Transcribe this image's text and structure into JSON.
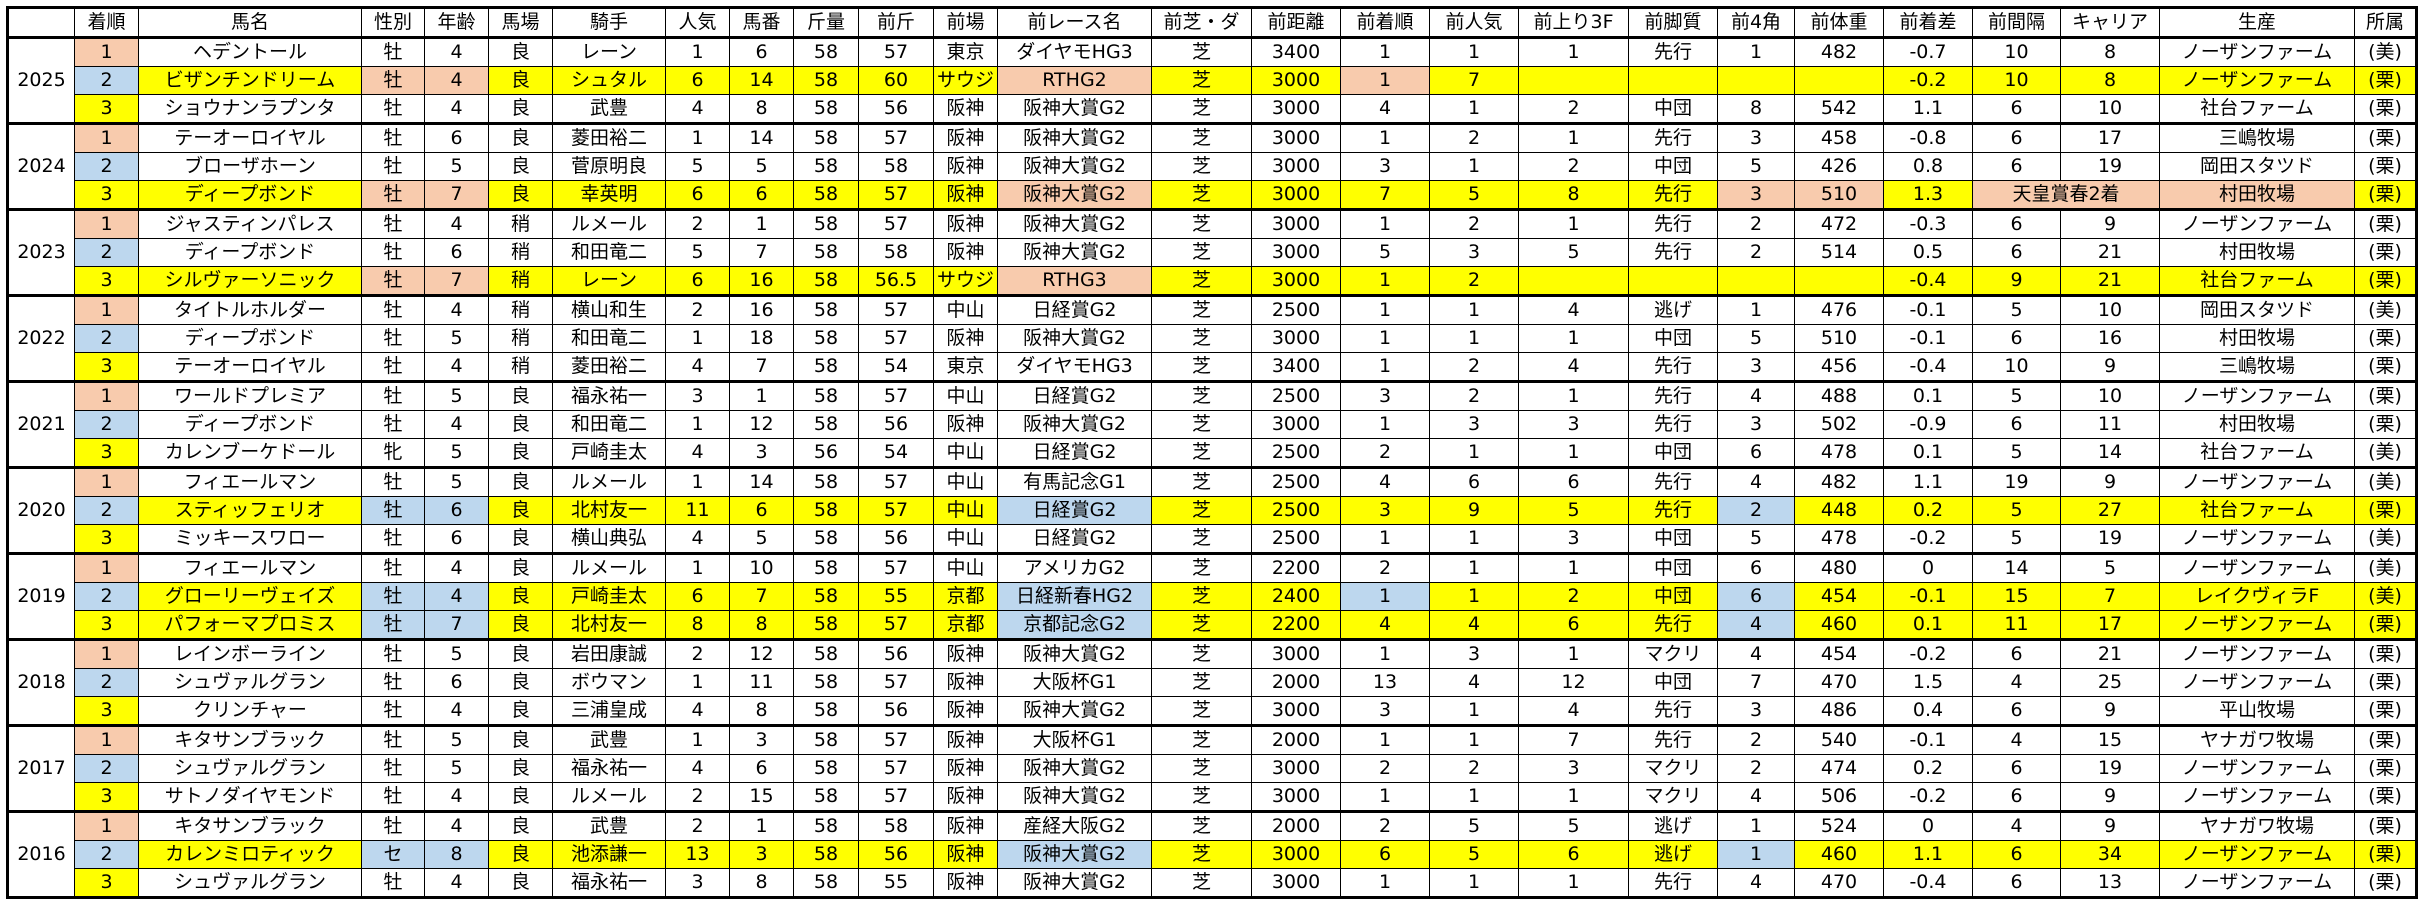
{
  "colors": {
    "yellow": "#FFFF00",
    "peach": "#F8CBAD",
    "blue": "#BDD7EE",
    "white": "#FFFFFF"
  },
  "rank_colors": {
    "1": "peach",
    "2": "blue",
    "3": "yellow"
  },
  "headers": [
    "",
    "着順",
    "馬名",
    "性別",
    "年齢",
    "馬場",
    "騎手",
    "人気",
    "馬番",
    "斤量",
    "前斤",
    "前場",
    "前レース名",
    "前芝・ダ",
    "前距離",
    "前着順",
    "前人気",
    "前上り3F",
    "前脚質",
    "前4角",
    "前体重",
    "前着差",
    "前間隔",
    "キャリア",
    "生産",
    "所属"
  ],
  "years": [
    {
      "year": "2025",
      "rows": [
        {
          "cells": [
            "1",
            "ヘデントール",
            "牡",
            "4",
            "良",
            "レーン",
            "1",
            "6",
            "58",
            "57",
            "東京",
            "ダイヤモHG3",
            "芝",
            "3400",
            "1",
            "1",
            "1",
            "先行",
            "1",
            "482",
            "-0.7",
            "10",
            "8",
            "ノーザンファーム",
            "(美)"
          ]
        },
        {
          "fill": "yellow",
          "cell_fill": {
            "2": "peach",
            "3": "peach",
            "11": "peach",
            "14": "peach"
          },
          "cells": [
            "2",
            "ビザンチンドリーム",
            "牡",
            "4",
            "良",
            "シュタル",
            "6",
            "14",
            "58",
            "60",
            "サウジ",
            "RTHG2",
            "芝",
            "3000",
            "1",
            "7",
            "",
            "",
            "",
            "",
            "-0.2",
            "10",
            "8",
            "ノーザンファーム",
            "(栗)"
          ]
        },
        {
          "cells": [
            "3",
            "ショウナンラプンタ",
            "牡",
            "4",
            "良",
            "武豊",
            "4",
            "8",
            "58",
            "56",
            "阪神",
            "阪神大賞G2",
            "芝",
            "3000",
            "4",
            "1",
            "2",
            "中団",
            "8",
            "542",
            "1.1",
            "6",
            "10",
            "社台ファーム",
            "(栗)"
          ]
        }
      ]
    },
    {
      "year": "2024",
      "rows": [
        {
          "cells": [
            "1",
            "テーオーロイヤル",
            "牡",
            "6",
            "良",
            "菱田裕二",
            "1",
            "14",
            "58",
            "57",
            "阪神",
            "阪神大賞G2",
            "芝",
            "3000",
            "1",
            "2",
            "1",
            "先行",
            "3",
            "458",
            "-0.8",
            "6",
            "17",
            "三嶋牧場",
            "(栗)"
          ]
        },
        {
          "cells": [
            "2",
            "ブローザホーン",
            "牡",
            "5",
            "良",
            "菅原明良",
            "5",
            "5",
            "58",
            "58",
            "阪神",
            "阪神大賞G2",
            "芝",
            "3000",
            "3",
            "1",
            "2",
            "中団",
            "5",
            "426",
            "0.8",
            "6",
            "19",
            "岡田スタツド",
            "(栗)"
          ]
        },
        {
          "fill": "yellow",
          "cell_fill": {
            "2": "peach",
            "3": "peach",
            "11": "peach",
            "18": "peach",
            "19": "peach",
            "21": "peach",
            "23": "peach"
          },
          "merge": {
            "21": 2
          },
          "cells": [
            "3",
            "ディープボンド",
            "牡",
            "7",
            "良",
            "幸英明",
            "6",
            "6",
            "58",
            "57",
            "阪神",
            "阪神大賞G2",
            "芝",
            "3000",
            "7",
            "5",
            "8",
            "先行",
            "3",
            "510",
            "1.3",
            "天皇賞春2着",
            null,
            "村田牧場",
            "(栗)"
          ]
        }
      ]
    },
    {
      "year": "2023",
      "rows": [
        {
          "cells": [
            "1",
            "ジャスティンパレス",
            "牡",
            "4",
            "稍",
            "ルメール",
            "2",
            "1",
            "58",
            "57",
            "阪神",
            "阪神大賞G2",
            "芝",
            "3000",
            "1",
            "2",
            "1",
            "先行",
            "2",
            "472",
            "-0.3",
            "6",
            "9",
            "ノーザンファーム",
            "(栗)"
          ]
        },
        {
          "cells": [
            "2",
            "ディープボンド",
            "牡",
            "6",
            "稍",
            "和田竜二",
            "5",
            "7",
            "58",
            "58",
            "阪神",
            "阪神大賞G2",
            "芝",
            "3000",
            "5",
            "3",
            "5",
            "先行",
            "2",
            "514",
            "0.5",
            "6",
            "21",
            "村田牧場",
            "(栗)"
          ]
        },
        {
          "fill": "yellow",
          "cell_fill": {
            "2": "peach",
            "3": "peach",
            "11": "peach"
          },
          "cells": [
            "3",
            "シルヴァーソニック",
            "牡",
            "7",
            "稍",
            "レーン",
            "6",
            "16",
            "58",
            "56.5",
            "サウジ",
            "RTHG3",
            "芝",
            "3000",
            "1",
            "2",
            "",
            "",
            "",
            "",
            "-0.4",
            "9",
            "21",
            "社台ファーム",
            "(栗)"
          ]
        }
      ]
    },
    {
      "year": "2022",
      "rows": [
        {
          "cells": [
            "1",
            "タイトルホルダー",
            "牡",
            "4",
            "稍",
            "横山和生",
            "2",
            "16",
            "58",
            "57",
            "中山",
            "日経賞G2",
            "芝",
            "2500",
            "1",
            "1",
            "4",
            "逃げ",
            "1",
            "476",
            "-0.1",
            "5",
            "10",
            "岡田スタツド",
            "(美)"
          ]
        },
        {
          "cells": [
            "2",
            "ディープボンド",
            "牡",
            "5",
            "稍",
            "和田竜二",
            "1",
            "18",
            "58",
            "57",
            "阪神",
            "阪神大賞G2",
            "芝",
            "3000",
            "1",
            "1",
            "1",
            "中団",
            "5",
            "510",
            "-0.1",
            "6",
            "16",
            "村田牧場",
            "(栗)"
          ]
        },
        {
          "cells": [
            "3",
            "テーオーロイヤル",
            "牡",
            "4",
            "稍",
            "菱田裕二",
            "4",
            "7",
            "58",
            "54",
            "東京",
            "ダイヤモHG3",
            "芝",
            "3400",
            "1",
            "2",
            "4",
            "先行",
            "3",
            "456",
            "-0.4",
            "10",
            "9",
            "三嶋牧場",
            "(栗)"
          ]
        }
      ]
    },
    {
      "year": "2021",
      "rows": [
        {
          "cells": [
            "1",
            "ワールドプレミア",
            "牡",
            "5",
            "良",
            "福永祐一",
            "3",
            "1",
            "58",
            "57",
            "中山",
            "日経賞G2",
            "芝",
            "2500",
            "3",
            "2",
            "1",
            "先行",
            "4",
            "488",
            "0.1",
            "5",
            "10",
            "ノーザンファーム",
            "(栗)"
          ]
        },
        {
          "cells": [
            "2",
            "ディープボンド",
            "牡",
            "4",
            "良",
            "和田竜二",
            "1",
            "12",
            "58",
            "56",
            "阪神",
            "阪神大賞G2",
            "芝",
            "3000",
            "1",
            "3",
            "3",
            "先行",
            "3",
            "502",
            "-0.9",
            "6",
            "11",
            "村田牧場",
            "(栗)"
          ]
        },
        {
          "cells": [
            "3",
            "カレンブーケドール",
            "牝",
            "5",
            "良",
            "戸崎圭太",
            "4",
            "3",
            "56",
            "54",
            "中山",
            "日経賞G2",
            "芝",
            "2500",
            "2",
            "1",
            "1",
            "中団",
            "6",
            "478",
            "0.1",
            "5",
            "14",
            "社台ファーム",
            "(美)"
          ]
        }
      ]
    },
    {
      "year": "2020",
      "rows": [
        {
          "cells": [
            "1",
            "フィエールマン",
            "牡",
            "5",
            "良",
            "ルメール",
            "1",
            "14",
            "58",
            "57",
            "中山",
            "有馬記念G1",
            "芝",
            "2500",
            "4",
            "6",
            "6",
            "先行",
            "4",
            "482",
            "1.1",
            "19",
            "9",
            "ノーザンファーム",
            "(美)"
          ]
        },
        {
          "fill": "yellow",
          "cell_fill": {
            "2": "blue",
            "3": "blue",
            "11": "blue",
            "18": "blue"
          },
          "cells": [
            "2",
            "スティッフェリオ",
            "牡",
            "6",
            "良",
            "北村友一",
            "11",
            "6",
            "58",
            "57",
            "中山",
            "日経賞G2",
            "芝",
            "2500",
            "3",
            "9",
            "5",
            "先行",
            "2",
            "448",
            "0.2",
            "5",
            "27",
            "社台ファーム",
            "(栗)"
          ]
        },
        {
          "cells": [
            "3",
            "ミッキースワロー",
            "牡",
            "6",
            "良",
            "横山典弘",
            "4",
            "5",
            "58",
            "56",
            "中山",
            "日経賞G2",
            "芝",
            "2500",
            "1",
            "1",
            "3",
            "中団",
            "5",
            "478",
            "-0.2",
            "5",
            "19",
            "ノーザンファーム",
            "(美)"
          ]
        }
      ]
    },
    {
      "year": "2019",
      "rows": [
        {
          "cells": [
            "1",
            "フィエールマン",
            "牡",
            "4",
            "良",
            "ルメール",
            "1",
            "10",
            "58",
            "57",
            "中山",
            "アメリカG2",
            "芝",
            "2200",
            "2",
            "1",
            "1",
            "中団",
            "6",
            "480",
            "0",
            "14",
            "5",
            "ノーザンファーム",
            "(美)"
          ]
        },
        {
          "fill": "yellow",
          "cell_fill": {
            "2": "blue",
            "3": "blue",
            "11": "blue",
            "14": "blue",
            "18": "blue"
          },
          "cells": [
            "2",
            "グローリーヴェイズ",
            "牡",
            "4",
            "良",
            "戸崎圭太",
            "6",
            "7",
            "58",
            "55",
            "京都",
            "日経新春HG2",
            "芝",
            "2400",
            "1",
            "1",
            "2",
            "中団",
            "6",
            "454",
            "-0.1",
            "15",
            "7",
            "レイクヴィラF",
            "(美)"
          ]
        },
        {
          "fill": "yellow",
          "cell_fill": {
            "2": "blue",
            "3": "blue",
            "11": "blue",
            "18": "blue"
          },
          "cells": [
            "3",
            "パフォーマプロミス",
            "牡",
            "7",
            "良",
            "北村友一",
            "8",
            "8",
            "58",
            "57",
            "京都",
            "京都記念G2",
            "芝",
            "2200",
            "4",
            "4",
            "6",
            "先行",
            "4",
            "460",
            "0.1",
            "11",
            "17",
            "ノーザンファーム",
            "(栗)"
          ]
        }
      ]
    },
    {
      "year": "2018",
      "rows": [
        {
          "cells": [
            "1",
            "レインボーライン",
            "牡",
            "5",
            "良",
            "岩田康誠",
            "2",
            "12",
            "58",
            "56",
            "阪神",
            "阪神大賞G2",
            "芝",
            "3000",
            "1",
            "3",
            "1",
            "マクリ",
            "4",
            "454",
            "-0.2",
            "6",
            "21",
            "ノーザンファーム",
            "(栗)"
          ]
        },
        {
          "cells": [
            "2",
            "シュヴァルグラン",
            "牡",
            "6",
            "良",
            "ボウマン",
            "1",
            "11",
            "58",
            "57",
            "阪神",
            "大阪杯G1",
            "芝",
            "2000",
            "13",
            "4",
            "12",
            "中団",
            "7",
            "470",
            "1.5",
            "4",
            "25",
            "ノーザンファーム",
            "(栗)"
          ]
        },
        {
          "cells": [
            "3",
            "クリンチャー",
            "牡",
            "4",
            "良",
            "三浦皇成",
            "4",
            "8",
            "58",
            "56",
            "阪神",
            "阪神大賞G2",
            "芝",
            "3000",
            "3",
            "1",
            "4",
            "先行",
            "3",
            "486",
            "0.4",
            "6",
            "9",
            "平山牧場",
            "(栗)"
          ]
        }
      ]
    },
    {
      "year": "2017",
      "rows": [
        {
          "cells": [
            "1",
            "キタサンブラック",
            "牡",
            "5",
            "良",
            "武豊",
            "1",
            "3",
            "58",
            "57",
            "阪神",
            "大阪杯G1",
            "芝",
            "2000",
            "1",
            "1",
            "7",
            "先行",
            "2",
            "540",
            "-0.1",
            "4",
            "15",
            "ヤナガワ牧場",
            "(栗)"
          ]
        },
        {
          "cells": [
            "2",
            "シュヴァルグラン",
            "牡",
            "5",
            "良",
            "福永祐一",
            "4",
            "6",
            "58",
            "57",
            "阪神",
            "阪神大賞G2",
            "芝",
            "3000",
            "2",
            "2",
            "3",
            "マクリ",
            "2",
            "474",
            "0.2",
            "6",
            "19",
            "ノーザンファーム",
            "(栗)"
          ]
        },
        {
          "cells": [
            "3",
            "サトノダイヤモンド",
            "牡",
            "4",
            "良",
            "ルメール",
            "2",
            "15",
            "58",
            "57",
            "阪神",
            "阪神大賞G2",
            "芝",
            "3000",
            "1",
            "1",
            "1",
            "マクリ",
            "4",
            "506",
            "-0.2",
            "6",
            "9",
            "ノーザンファーム",
            "(栗)"
          ]
        }
      ]
    },
    {
      "year": "2016",
      "rows": [
        {
          "cells": [
            "1",
            "キタサンブラック",
            "牡",
            "4",
            "良",
            "武豊",
            "2",
            "1",
            "58",
            "58",
            "阪神",
            "産経大阪G2",
            "芝",
            "2000",
            "2",
            "5",
            "5",
            "逃げ",
            "1",
            "524",
            "0",
            "4",
            "9",
            "ヤナガワ牧場",
            "(栗)"
          ]
        },
        {
          "fill": "yellow",
          "cell_fill": {
            "2": "blue",
            "3": "blue",
            "11": "blue",
            "18": "blue"
          },
          "cells": [
            "2",
            "カレンミロティック",
            "セ",
            "8",
            "良",
            "池添謙一",
            "13",
            "3",
            "58",
            "56",
            "阪神",
            "阪神大賞G2",
            "芝",
            "3000",
            "6",
            "5",
            "6",
            "逃げ",
            "1",
            "460",
            "1.1",
            "6",
            "34",
            "ノーザンファーム",
            "(栗)"
          ]
        },
        {
          "cells": [
            "3",
            "シュヴァルグラン",
            "牡",
            "4",
            "良",
            "福永祐一",
            "3",
            "8",
            "58",
            "55",
            "阪神",
            "阪神大賞G2",
            "芝",
            "3000",
            "1",
            "1",
            "1",
            "先行",
            "4",
            "470",
            "-0.4",
            "6",
            "13",
            "ノーザンファーム",
            "(栗)"
          ]
        }
      ]
    }
  ]
}
